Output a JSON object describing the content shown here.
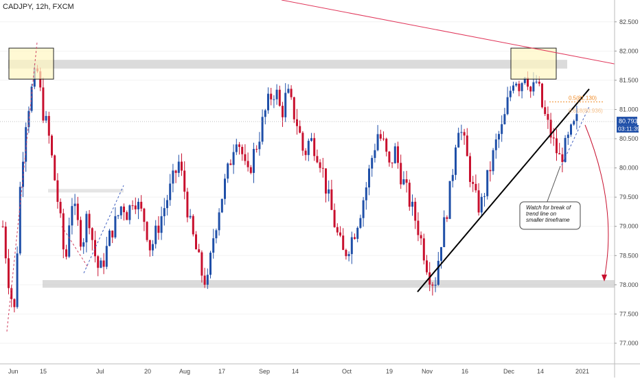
{
  "header": {
    "symbol_line": "CADJPY, 12h, FXCM"
  },
  "chart_data": {
    "type": "candlestick",
    "title": "CADJPY, 12h, FXCM",
    "ylim": [
      76.8,
      82.85
    ],
    "y_ticks": [
      "82.500",
      "82.000",
      "81.500",
      "81.000",
      "80.500",
      "80.000",
      "79.500",
      "79.000",
      "78.500",
      "78.000",
      "77.500",
      "77.000"
    ],
    "y_tick_values": [
      82.5,
      82.0,
      81.5,
      81.0,
      80.5,
      80.0,
      79.5,
      79.0,
      78.5,
      78.0,
      77.5,
      77.0
    ],
    "x_ticks": [
      "Jun",
      "15",
      "Jul",
      "20",
      "Aug",
      "17",
      "Sep",
      "14",
      "Oct",
      "19",
      "Nov",
      "16",
      "Dec",
      "14",
      "2021"
    ],
    "price_label": "80.793",
    "price_value": 80.793,
    "countdown_label": "03:11:39",
    "fib_label": "0.5(81.130)",
    "fib_value": 81.13,
    "fib_label_2": "0.618(80.936)",
    "fib_value_2": 80.936,
    "resistance_zone": [
      81.7,
      81.85
    ],
    "support_zone": [
      77.95,
      78.08
    ],
    "colors": {
      "up": "#1f4fa8",
      "down": "#c8102e",
      "zone": "#cfcfcf",
      "box": "#fff7c2",
      "trend": "#000000",
      "resistance_line": "#e0365a",
      "fib": "#f08a24"
    },
    "path": [
      79.0,
      78.1,
      77.5,
      79.6,
      80.8,
      81.3,
      81.7,
      81.0,
      80.6,
      79.9,
      79.2,
      78.3,
      79.5,
      79.1,
      78.7,
      79.3,
      78.6,
      78.2,
      78.5,
      78.9,
      79.1,
      79.4,
      79.2,
      79.55,
      79.3,
      79.1,
      78.6,
      78.9,
      79.2,
      79.5,
      79.8,
      80.1,
      79.6,
      79.0,
      78.6,
      78.2,
      78.0,
      78.8,
      79.3,
      79.7,
      80.1,
      80.6,
      80.3,
      79.8,
      80.2,
      80.5,
      80.9,
      81.2,
      81.35,
      80.9,
      81.3,
      81.0,
      80.7,
      80.2,
      80.5,
      80.35,
      80.1,
      79.6,
      79.2,
      78.8,
      78.5,
      78.7,
      78.95,
      79.3,
      79.7,
      80.2,
      80.6,
      80.4,
      80.0,
      80.3,
      79.9,
      79.6,
      79.3,
      79.0,
      78.6,
      78.2,
      78.0,
      78.7,
      79.2,
      79.8,
      80.8,
      80.5,
      80.0,
      79.5,
      79.3,
      79.7,
      80.1,
      80.5,
      80.7,
      81.2,
      81.6,
      81.4,
      81.7,
      81.25,
      81.5,
      81.0,
      80.7,
      80.4,
      80.15,
      80.35,
      80.6,
      80.8
    ],
    "annotation": "Watch for break of trend line on smaller timeframe"
  }
}
